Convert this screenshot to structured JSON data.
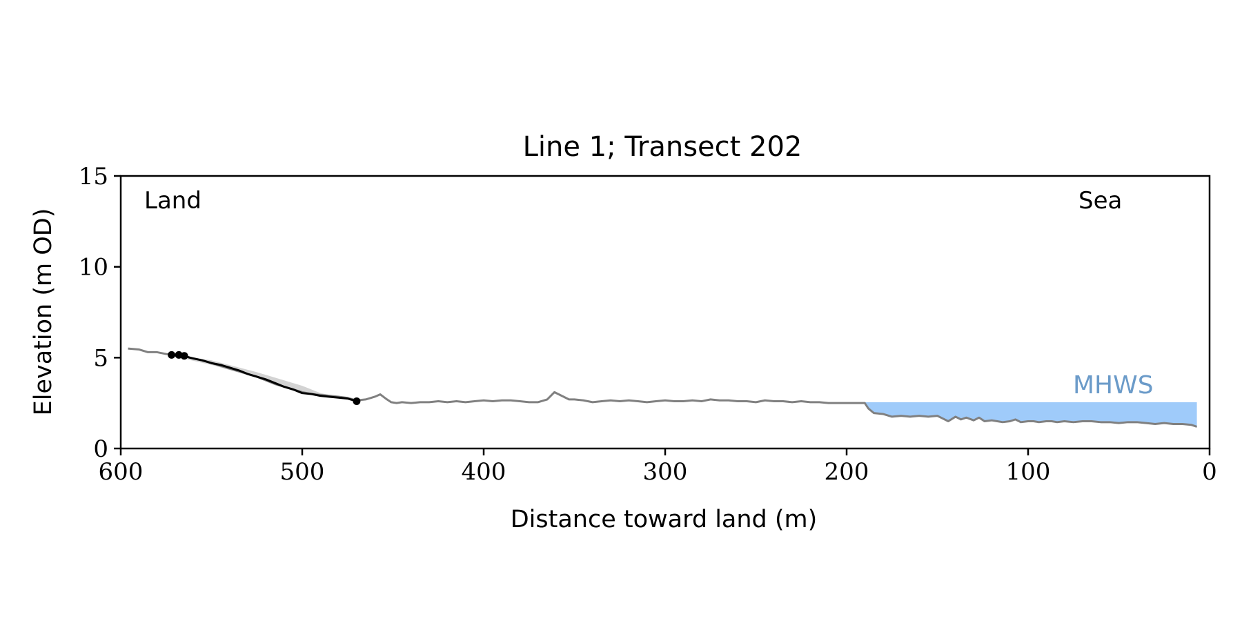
{
  "chart_data": {
    "type": "line",
    "title": "Line 1; Transect 202",
    "xlabel": "Distance toward land (m)",
    "ylabel": "Elevation (m OD)",
    "xlim": [
      600,
      0
    ],
    "ylim": [
      0,
      15
    ],
    "x_ticks": [
      600,
      500,
      400,
      300,
      200,
      100,
      0
    ],
    "y_ticks": [
      0,
      5,
      10,
      15
    ],
    "x_tick_labels": [
      "600",
      "500",
      "400",
      "300",
      "200",
      "100",
      "0"
    ],
    "y_tick_labels": [
      "0",
      "5",
      "10",
      "15"
    ],
    "grid": false,
    "annotations": {
      "left": "Land",
      "right": "Sea",
      "mhws": "MHWS"
    },
    "mhws": {
      "level": 2.55,
      "x_range": [
        190,
        7
      ],
      "color": "#9fcbfa",
      "label_color": "#6b9bc9"
    },
    "colors": {
      "profile": "#808080",
      "highlight": "#000000",
      "band": "#d3d3d3"
    },
    "profile": {
      "x": [
        596,
        590,
        585,
        580,
        575,
        570,
        565,
        560,
        555,
        550,
        545,
        540,
        535,
        530,
        525,
        520,
        515,
        510,
        505,
        500,
        495,
        490,
        485,
        480,
        475,
        470,
        465,
        460,
        457,
        454,
        451,
        448,
        445,
        440,
        435,
        430,
        425,
        420,
        415,
        410,
        405,
        400,
        395,
        390,
        385,
        380,
        375,
        370,
        365,
        361,
        357,
        353,
        350,
        345,
        340,
        335,
        330,
        325,
        320,
        315,
        310,
        305,
        300,
        295,
        290,
        285,
        280,
        275,
        270,
        265,
        260,
        255,
        250,
        245,
        240,
        235,
        230,
        225,
        220,
        215,
        210,
        205,
        200,
        195,
        190,
        188,
        185,
        180,
        175,
        170,
        165,
        160,
        155,
        150,
        147,
        144,
        140,
        137,
        134,
        130,
        127,
        124,
        120,
        117,
        114,
        110,
        107,
        104,
        100,
        97,
        94,
        90,
        87,
        84,
        80,
        75,
        70,
        65,
        60,
        55,
        50,
        45,
        40,
        35,
        30,
        25,
        20,
        15,
        10,
        7
      ],
      "y": [
        5.5,
        5.45,
        5.3,
        5.3,
        5.2,
        5.15,
        5.1,
        4.95,
        4.85,
        4.7,
        4.55,
        4.4,
        4.25,
        4.1,
        3.95,
        3.75,
        3.55,
        3.4,
        3.25,
        3.1,
        3.0,
        2.95,
        2.9,
        2.85,
        2.78,
        2.65,
        2.7,
        2.85,
        2.98,
        2.75,
        2.55,
        2.5,
        2.55,
        2.5,
        2.55,
        2.55,
        2.6,
        2.55,
        2.6,
        2.55,
        2.6,
        2.65,
        2.6,
        2.65,
        2.65,
        2.6,
        2.55,
        2.55,
        2.7,
        3.1,
        2.9,
        2.7,
        2.7,
        2.65,
        2.55,
        2.6,
        2.65,
        2.6,
        2.65,
        2.6,
        2.55,
        2.6,
        2.65,
        2.6,
        2.6,
        2.65,
        2.6,
        2.7,
        2.65,
        2.65,
        2.6,
        2.6,
        2.55,
        2.65,
        2.6,
        2.6,
        2.55,
        2.6,
        2.55,
        2.55,
        2.5,
        2.5,
        2.5,
        2.5,
        2.5,
        2.2,
        1.95,
        1.9,
        1.75,
        1.8,
        1.75,
        1.8,
        1.75,
        1.8,
        1.65,
        1.5,
        1.75,
        1.6,
        1.7,
        1.55,
        1.7,
        1.5,
        1.55,
        1.5,
        1.45,
        1.5,
        1.6,
        1.45,
        1.5,
        1.5,
        1.45,
        1.5,
        1.5,
        1.45,
        1.5,
        1.45,
        1.5,
        1.5,
        1.45,
        1.45,
        1.4,
        1.45,
        1.45,
        1.4,
        1.35,
        1.4,
        1.35,
        1.35,
        1.3,
        1.2
      ]
    },
    "highlight": {
      "x": [
        572,
        567,
        562,
        555,
        550,
        545,
        540,
        535,
        530,
        525,
        520,
        515,
        510,
        505,
        500,
        495,
        490,
        485,
        480,
        475,
        470
      ],
      "y": [
        5.15,
        5.15,
        5.0,
        4.85,
        4.7,
        4.6,
        4.45,
        4.3,
        4.1,
        3.95,
        3.8,
        3.6,
        3.4,
        3.25,
        3.05,
        3.0,
        2.9,
        2.85,
        2.8,
        2.75,
        2.6
      ]
    },
    "highlight_points": {
      "x": [
        572,
        568,
        565,
        470
      ],
      "y": [
        5.15,
        5.15,
        5.1,
        2.6
      ]
    },
    "band": {
      "x": [
        572,
        550,
        525,
        500,
        490,
        480,
        475
      ],
      "upper": [
        5.2,
        4.85,
        4.2,
        3.45,
        3.05,
        2.85,
        2.8
      ],
      "lower": [
        5.1,
        4.6,
        3.9,
        3.1,
        2.95,
        2.8,
        2.75
      ]
    }
  }
}
